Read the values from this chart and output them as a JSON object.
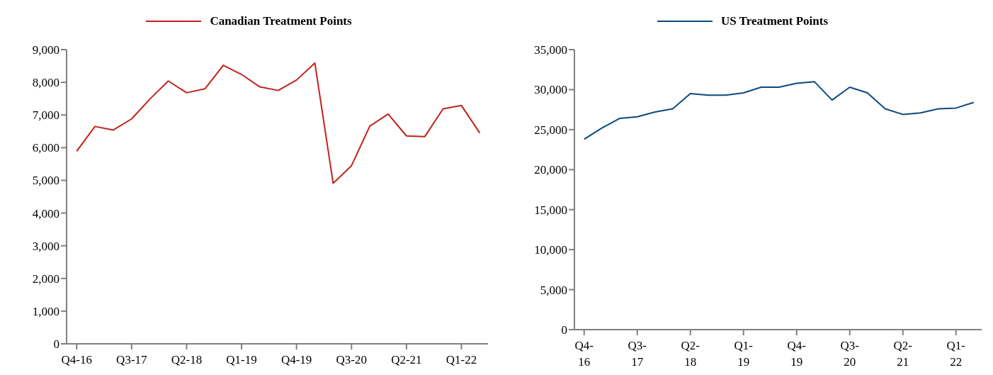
{
  "chart_data": [
    {
      "type": "line",
      "categories": [
        "Q4-16",
        null,
        null,
        "Q3-17",
        null,
        null,
        "Q2-18",
        null,
        null,
        "Q1-19",
        null,
        null,
        "Q4-19",
        null,
        null,
        "Q3-20",
        null,
        null,
        "Q2-21",
        null,
        null,
        "Q1-22",
        null
      ],
      "series": [
        {
          "name": "Canadian Treatment Points",
          "color": "#c0231b",
          "values": [
            5890,
            6650,
            6540,
            6880,
            7490,
            8040,
            7680,
            7800,
            8520,
            8240,
            7860,
            7750,
            8070,
            8590,
            4910,
            5450,
            6660,
            7030,
            6360,
            6340,
            7190,
            7290,
            6450
          ]
        }
      ],
      "ylim": [
        0,
        9000
      ],
      "yticks": [
        0,
        {
          "value": 1000,
          "label": "1,000"
        },
        {
          "value": 2000,
          "label": "2,000"
        },
        {
          "value": 3000,
          "label": "3,000"
        },
        {
          "value": 4000,
          "label": "4,000"
        },
        {
          "value": 5000,
          "label": "5,000"
        },
        {
          "value": 6000,
          "label": "6,000"
        },
        {
          "value": 7000,
          "label": "7,000"
        },
        {
          "value": 8000,
          "label": "8,000"
        },
        {
          "value": 9000,
          "label": "9,000"
        }
      ],
      "legend": "top",
      "marker": "none",
      "line_style": "solid"
    },
    {
      "type": "line",
      "categories": [
        "Q4-16",
        null,
        null,
        "Q3-17",
        null,
        null,
        "Q2-18",
        null,
        null,
        "Q1-19",
        null,
        null,
        "Q4-19",
        null,
        null,
        "Q3-20",
        null,
        null,
        "Q2-21",
        null,
        null,
        "Q1-22",
        null
      ],
      "series": [
        {
          "name": "US Treatment Points",
          "color": "#0b4a80",
          "values": [
            23800,
            25200,
            26400,
            26600,
            27200,
            27600,
            29500,
            29300,
            29300,
            29600,
            30300,
            30300,
            30800,
            31000,
            28700,
            30300,
            29600,
            27600,
            26900,
            27100,
            27600,
            27700,
            28400
          ]
        }
      ],
      "ylim": [
        0,
        35000
      ],
      "yticks": [
        0,
        {
          "value": 5000,
          "label": "5,000"
        },
        {
          "value": 10000,
          "label": "10,000"
        },
        {
          "value": 15000,
          "label": "15,000"
        },
        {
          "value": 20000,
          "label": "20,000"
        },
        {
          "value": 25000,
          "label": "25,000"
        },
        {
          "value": 30000,
          "label": "30,000"
        },
        {
          "value": 35000,
          "label": "35,000"
        }
      ],
      "legend": "top",
      "marker": "none",
      "line_style": "solid"
    }
  ]
}
